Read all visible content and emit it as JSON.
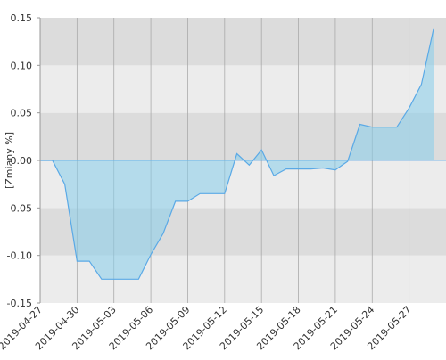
{
  "chart_data": {
    "type": "area",
    "y_label": "[Zmiany %]",
    "x": [
      "2019-04-27",
      "2019-04-28",
      "2019-04-29",
      "2019-04-30",
      "2019-05-01",
      "2019-05-02",
      "2019-05-03",
      "2019-05-04",
      "2019-05-05",
      "2019-05-06",
      "2019-05-07",
      "2019-05-08",
      "2019-05-09",
      "2019-05-10",
      "2019-05-11",
      "2019-05-12",
      "2019-05-13",
      "2019-05-14",
      "2019-05-15",
      "2019-05-16",
      "2019-05-17",
      "2019-05-18",
      "2019-05-19",
      "2019-05-20",
      "2019-05-21",
      "2019-05-22",
      "2019-05-23",
      "2019-05-24",
      "2019-05-25",
      "2019-05-26",
      "2019-05-27",
      "2019-05-28",
      "2019-05-29"
    ],
    "series": [
      {
        "color": "#5aa9e6",
        "values": [
          0,
          0,
          -0.025,
          -0.106,
          -0.106,
          -0.125,
          -0.125,
          -0.125,
          -0.125,
          -0.099,
          -0.077,
          -0.043,
          -0.043,
          -0.035,
          -0.035,
          -0.035,
          0.007,
          -0.005,
          0.011,
          -0.016,
          -0.009,
          -0.009,
          -0.009,
          -0.008,
          -0.01,
          -0.001,
          0.038,
          0.035,
          0.035,
          0.035,
          0.055,
          0.08,
          0.139
        ]
      }
    ],
    "xlim": [
      "2019-04-27",
      "2019-05-30"
    ],
    "xticks": [
      "2019-04-27",
      "2019-04-30",
      "2019-05-03",
      "2019-05-06",
      "2019-05-09",
      "2019-05-12",
      "2019-05-15",
      "2019-05-18",
      "2019-05-21",
      "2019-05-24",
      "2019-05-27"
    ],
    "ylim": [
      -0.15,
      0.15
    ],
    "yticks": [
      {
        "value": -0.15,
        "label": "-0.15"
      },
      {
        "value": -0.1,
        "label": "-0.10"
      },
      {
        "value": -0.05,
        "label": "-0.05"
      },
      {
        "value": 0,
        "label": "0.00"
      },
      0.05,
      {
        "value": 0.1,
        "label": "0.10"
      },
      0.15
    ],
    "grid": true
  }
}
